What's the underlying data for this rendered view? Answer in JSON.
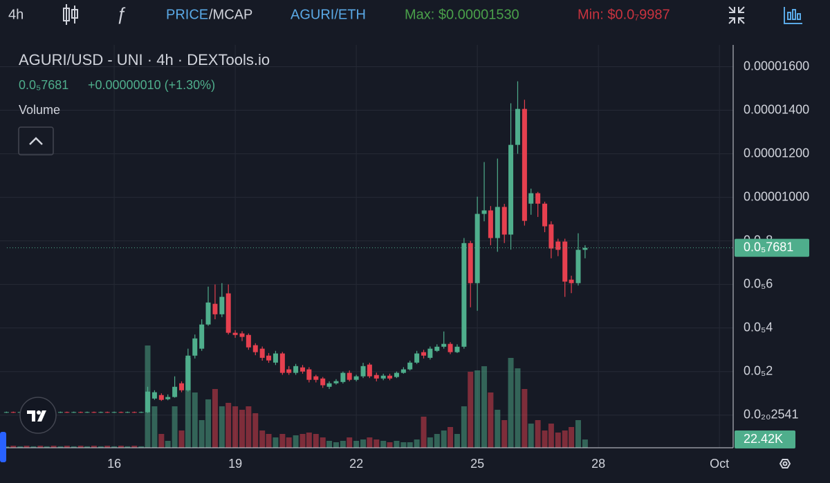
{
  "toolbar": {
    "interval": "4h",
    "price": "PRICE",
    "mcap": "/MCAP",
    "pair": "AGURI/ETH",
    "max": "Max: $0.00001530",
    "min": "Min: $0.0₇9987"
  },
  "chart_data": {
    "type": "candlestick",
    "title": "AGURI/USD - UNI · 4h · DEXTools.io",
    "change": "+0.00000010 (+1.30%)",
    "volume_label": "Volume",
    "last_price": {
      "value": 7.681e-06,
      "label": "0.0₅7681"
    },
    "last_volume": {
      "value": 22420,
      "label": "22.42K"
    },
    "up_color": "#4fae8c",
    "down_color": "#e6404f",
    "grid": true,
    "xlim": [
      13.17,
      31.34
    ],
    "xticks": [
      16,
      19,
      22,
      25,
      28,
      {
        "value": 31,
        "label": "Oct"
      }
    ],
    "ylim": [
      -1.5e-06,
      1.7e-05
    ],
    "yticks": [
      {
        "value": 1.6e-05,
        "label": "0.00001600"
      },
      {
        "value": 1.4e-05,
        "label": "0.00001400"
      },
      {
        "value": 1.2e-05,
        "label": "0.00001200"
      },
      {
        "value": 1e-05,
        "label": "0.00001000"
      },
      {
        "value": 8e-06,
        "label": "0.0₅8"
      },
      {
        "value": 6e-06,
        "label": "0.0₅6"
      },
      {
        "value": 4e-06,
        "label": "0.0₅4"
      },
      {
        "value": 2e-06,
        "label": "0.0₅2"
      },
      {
        "value": 2.541e-21,
        "label": "0.0₂₀2541"
      }
    ],
    "volume_ylim": [
      0,
      300000
    ],
    "x": [
      13.33,
      13.5,
      13.67,
      13.83,
      14,
      14.17,
      14.33,
      14.5,
      14.67,
      14.83,
      15,
      15.17,
      15.33,
      15.5,
      15.67,
      15.83,
      16,
      16.17,
      16.33,
      16.5,
      16.67,
      16.83,
      17,
      17.17,
      17.33,
      17.5,
      17.67,
      17.83,
      18,
      18.17,
      18.33,
      18.5,
      18.67,
      18.83,
      19,
      19.17,
      19.33,
      19.5,
      19.67,
      19.83,
      20,
      20.17,
      20.33,
      20.5,
      20.67,
      20.83,
      21,
      21.17,
      21.33,
      21.5,
      21.67,
      21.83,
      22,
      22.17,
      22.33,
      22.5,
      22.67,
      22.83,
      23,
      23.17,
      23.33,
      23.5,
      23.67,
      23.83,
      24,
      24.17,
      24.33,
      24.5,
      24.67,
      24.83,
      25,
      25.17,
      25.33,
      25.5,
      25.67,
      25.83,
      26,
      26.17,
      26.33,
      26.5,
      26.67,
      26.83,
      27,
      27.17,
      27.33,
      27.5,
      27.67
    ],
    "open": [
      1.2e-07,
      1.4e-07,
      1.2e-07,
      1.4e-07,
      1.2e-07,
      1.4e-07,
      1.2e-07,
      1.4e-07,
      1.2e-07,
      1.4e-07,
      1.2e-07,
      1.4e-07,
      1.2e-07,
      1.4e-07,
      1.2e-07,
      1.4e-07,
      1.2e-07,
      1.4e-07,
      1.2e-07,
      1.4e-07,
      1.2e-07,
      1.3e-07,
      7.6e-07,
      9.2e-07,
      7.3e-07,
      8.3e-07,
      1.46e-06,
      1.14e-06,
      2.73e-06,
      3.05e-06,
      4.16e-06,
      5.11e-06,
      4.63e-06,
      5.59e-06,
      3.78e-06,
      3.75e-06,
      3.68e-06,
      3.21e-06,
      3.05e-06,
      2.73e-06,
      2.41e-06,
      2.83e-06,
      2.1e-06,
      1.94e-06,
      2.19e-06,
      2.1e-06,
      1.78e-06,
      1.68e-06,
      1.3e-06,
      1.46e-06,
      1.52e-06,
      1.94e-06,
      1.62e-06,
      1.78e-06,
      2.32e-06,
      1.84e-06,
      1.68e-06,
      1.81e-06,
      1.75e-06,
      1.94e-06,
      2.1e-06,
      2.41e-06,
      2.89e-06,
      2.63e-06,
      2.95e-06,
      3.14e-06,
      3.27e-06,
      2.89e-06,
      3.14e-06,
      7.9e-06,
      6.06e-06,
      9.24e-06,
      9.4e-06,
      8.13e-06,
      9.56e-06,
      8.29e-06,
      1.241e-05,
      1.406e-05,
      9.71e-06,
      1.019e-05,
      9.71e-06,
      8.76e-06,
      7.97e-06,
      7.97e-06,
      6.22e-06,
      6.06e-06,
      7.59e-06
    ],
    "high": [
      1.6e-07,
      1.6e-07,
      1.6e-07,
      1.6e-07,
      1.6e-07,
      1.6e-07,
      1.6e-07,
      1.6e-07,
      1.6e-07,
      1.6e-07,
      1.6e-07,
      1.6e-07,
      1.6e-07,
      1.6e-07,
      1.6e-07,
      1.6e-07,
      1.6e-07,
      1.6e-07,
      1.6e-07,
      1.6e-07,
      1.6e-07,
      1.3e-06,
      1.14e-06,
      1e-06,
      9.5e-07,
      1.78e-06,
      1.55e-06,
      3.05e-06,
      3.7e-06,
      4.4e-06,
      5.9e-06,
      6e-06,
      6.06e-06,
      6e-06,
      3.9e-06,
      3.85e-06,
      3.75e-06,
      3.3e-06,
      3.15e-06,
      2.85e-06,
      2.95e-06,
      2.9e-06,
      2.25e-06,
      2.35e-06,
      2.3e-06,
      2.2e-06,
      1.85e-06,
      1.75e-06,
      1.55e-06,
      1.65e-06,
      2e-06,
      2.05e-06,
      1.85e-06,
      2.4e-06,
      2.4e-06,
      1.95e-06,
      1.9e-06,
      1.9e-06,
      2e-06,
      2.2e-06,
      2.5e-06,
      2.95e-06,
      3e-06,
      3.15e-06,
      3.25e-06,
      3.84e-06,
      3.35e-06,
      3.25e-06,
      8.13e-06,
      8e-06,
      1.003e-05,
      1.162e-05,
      9.6e-06,
      1.178e-05,
      9.7e-06,
      1.432e-05,
      1.533e-05,
      1.448e-05,
      1.04e-05,
      1.025e-05,
      9.8e-06,
      8.9e-06,
      8.1e-06,
      8.1e-06,
      6.4e-06,
      8.35e-06,
      7.8e-06
    ],
    "low": [
      1e-07,
      1e-07,
      1e-07,
      1e-07,
      1e-07,
      1e-07,
      1e-07,
      1e-07,
      1e-07,
      1e-07,
      1e-07,
      1e-07,
      1e-07,
      1e-07,
      1e-07,
      1e-07,
      1e-07,
      1e-07,
      1e-07,
      1e-07,
      1e-07,
      1e-07,
      7e-07,
      6.5e-07,
      6.8e-07,
      8e-07,
      1.05e-06,
      1.08e-06,
      2.6e-06,
      2.95e-06,
      4.1e-06,
      4.4e-06,
      4.5e-06,
      3.7e-06,
      3.55e-06,
      3.4e-06,
      3e-06,
      2.75e-06,
      2.5e-06,
      2.4e-06,
      2.3e-06,
      1.85e-06,
      1.85e-06,
      1.85e-06,
      1.9e-06,
      1.5e-06,
      1.5e-06,
      1.25e-06,
      1.2e-06,
      1.4e-06,
      1.45e-06,
      1.55e-06,
      1.55e-06,
      1.7e-06,
      1.7e-06,
      1.55e-06,
      1.6e-06,
      1.6e-06,
      1.7e-06,
      1.9e-06,
      2.05e-06,
      2.35e-06,
      2.6e-06,
      2.55e-06,
      2.9e-06,
      3.05e-06,
      2.8e-06,
      2.85e-06,
      3.05e-06,
      4.95e-06,
      4.79e-06,
      8.9e-06,
      7.8e-06,
      7.5e-06,
      7.9e-06,
      7.6e-06,
      1.2e-05,
      8.7e-06,
      9.2e-06,
      9.1e-06,
      8.4e-06,
      7.2e-06,
      7.3e-06,
      5.43e-06,
      5.6e-06,
      5.95e-06,
      7.2e-06
    ],
    "close": [
      1.4e-07,
      1.2e-07,
      1.4e-07,
      1.2e-07,
      1.4e-07,
      1.2e-07,
      1.4e-07,
      1.2e-07,
      1.4e-07,
      1.2e-07,
      1.4e-07,
      1.2e-07,
      1.4e-07,
      1.2e-07,
      1.4e-07,
      1.2e-07,
      1.4e-07,
      1.2e-07,
      1.4e-07,
      1.2e-07,
      1.4e-07,
      1.08e-06,
      1.05e-06,
      7e-07,
      8.3e-07,
      1.3e-06,
      1.14e-06,
      2.73e-06,
      3.52e-06,
      4.16e-06,
      5.17e-06,
      4.63e-06,
      5.43e-06,
      3.78e-06,
      3.68e-06,
      3.59e-06,
      3.11e-06,
      2.89e-06,
      2.63e-06,
      2.51e-06,
      2.83e-06,
      1.94e-06,
      1.94e-06,
      2.25e-06,
      2e-06,
      1.62e-06,
      1.62e-06,
      1.37e-06,
      1.46e-06,
      1.56e-06,
      1.94e-06,
      1.62e-06,
      1.78e-06,
      2.25e-06,
      1.78e-06,
      1.68e-06,
      1.81e-06,
      1.68e-06,
      1.94e-06,
      2.1e-06,
      2.41e-06,
      2.83e-06,
      2.73e-06,
      3.05e-06,
      3.14e-06,
      3.27e-06,
      2.89e-06,
      3.14e-06,
      7.9e-06,
      6.06e-06,
      9.24e-06,
      9.4e-06,
      8.13e-06,
      9.56e-06,
      8.29e-06,
      1.241e-05,
      1.406e-05,
      8.92e-06,
      1.019e-05,
      9.71e-06,
      8.67e-06,
      7.65e-06,
      7.59e-06,
      6.13e-06,
      6.06e-06,
      7.59e-06,
      7.681e-06
    ],
    "volume": [
      4000,
      5600,
      4000,
      5600,
      4000,
      5600,
      4000,
      5600,
      4000,
      5600,
      4000,
      5600,
      4000,
      5600,
      4000,
      5600,
      4000,
      5600,
      4000,
      5600,
      4000,
      277500,
      112500,
      37500,
      18750,
      112500,
      46900,
      243800,
      150000,
      75000,
      131300,
      159400,
      112500,
      121900,
      112500,
      103100,
      112500,
      93800,
      46900,
      37500,
      28100,
      37500,
      28100,
      33800,
      37500,
      41300,
      37500,
      28100,
      18800,
      15000,
      18800,
      28100,
      18800,
      22500,
      28100,
      22500,
      18800,
      15000,
      18800,
      15000,
      15000,
      22500,
      84400,
      28100,
      37500,
      46900,
      56300,
      37500,
      112500,
      206300,
      210000,
      221300,
      150000,
      103100,
      75000,
      243800,
      215600,
      159400,
      65600,
      75000,
      46900,
      65600,
      41300,
      46900,
      56300,
      75000,
      22420
    ]
  }
}
